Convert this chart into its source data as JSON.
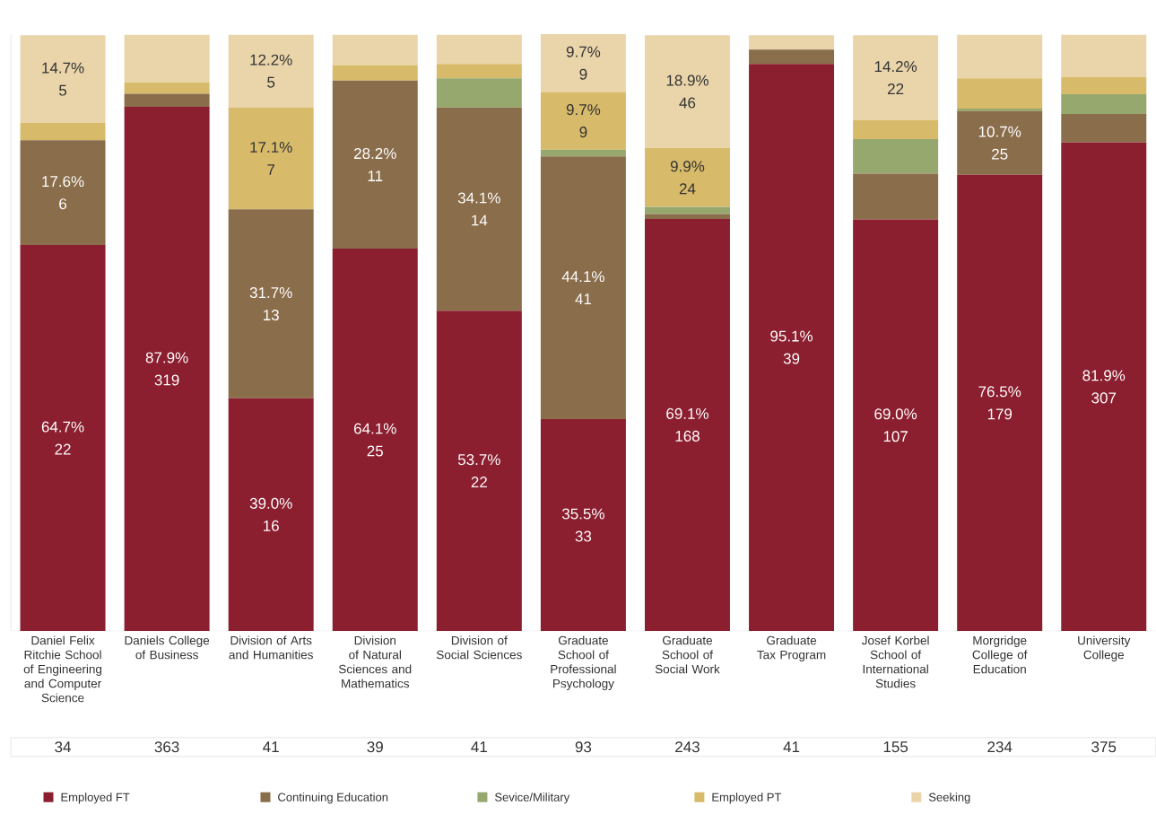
{
  "chart_data": {
    "type": "bar",
    "stacked": true,
    "categories": [
      "Daniel Felix Ritchie School of Engineering and Computer Science",
      "Daniels College of Business",
      "Division of Arts and Humanities",
      "Division of Natural Sciences and Mathematics",
      "Division of Social Sciences",
      "Graduate School of Professional Psychology",
      "Graduate School of Social Work",
      "Graduate Tax Program",
      "Josef Korbel School of International Studies",
      "Morgridge College of Education",
      "University College"
    ],
    "legend": "bottom",
    "series": [
      {
        "name": "Employed FT",
        "color": "#8b1e2f",
        "values": [
          64.7,
          87.9,
          39.0,
          64.1,
          53.7,
          35.5,
          69.1,
          95.1,
          69.0,
          76.5,
          81.9
        ],
        "value_labels": [
          "64.7% 22",
          "87.9% 319",
          "39.0% 16",
          "64.1% 25",
          "53.7% 22",
          "35.5% 33",
          "69.1% 168",
          "95.1% 39",
          "69.0% 107",
          "76.5% 179",
          "81.9% 307"
        ]
      },
      {
        "name": "Continuing Education",
        "color": "#8a6d4b",
        "values": [
          17.6,
          2.2,
          31.7,
          28.2,
          34.1,
          44.1,
          0.8,
          2.4,
          7.7,
          10.7,
          4.8
        ],
        "value_labels": [
          "17.6% 6",
          null,
          "31.7% 13",
          "28.2% 11",
          "34.1% 14",
          "44.1% 41",
          null,
          null,
          null,
          "10.7% 25",
          null
        ]
      },
      {
        "name": "Sevice/Military",
        "color": "#97a86e",
        "values": [
          null,
          null,
          null,
          null,
          4.9,
          1.1,
          1.2,
          null,
          5.8,
          0.4,
          3.3
        ]
      },
      {
        "name": "Employed PT",
        "color": "#d8bb6a",
        "values": [
          2.9,
          1.9,
          17.1,
          2.6,
          2.4,
          9.7,
          9.9,
          null,
          3.2,
          5.1,
          2.9
        ],
        "value_labels": [
          null,
          null,
          "17.1% 7",
          null,
          null,
          "9.7% 9",
          "9.9% 24",
          null,
          null,
          null,
          null
        ]
      },
      {
        "name": "Seeking",
        "color": "#ead5aa",
        "values": [
          14.7,
          8.0,
          12.2,
          5.1,
          4.9,
          9.7,
          18.9,
          2.4,
          14.2,
          7.3,
          7.1
        ],
        "value_labels": [
          "14.7% 5",
          null,
          "12.2% 5",
          null,
          null,
          "9.7% 9",
          "18.9% 46",
          null,
          "14.2% 22",
          null,
          null
        ]
      }
    ],
    "annotations": [
      "34",
      "363",
      "41",
      "39",
      "41",
      "93",
      "243",
      "41",
      "155",
      "234",
      "375"
    ]
  }
}
